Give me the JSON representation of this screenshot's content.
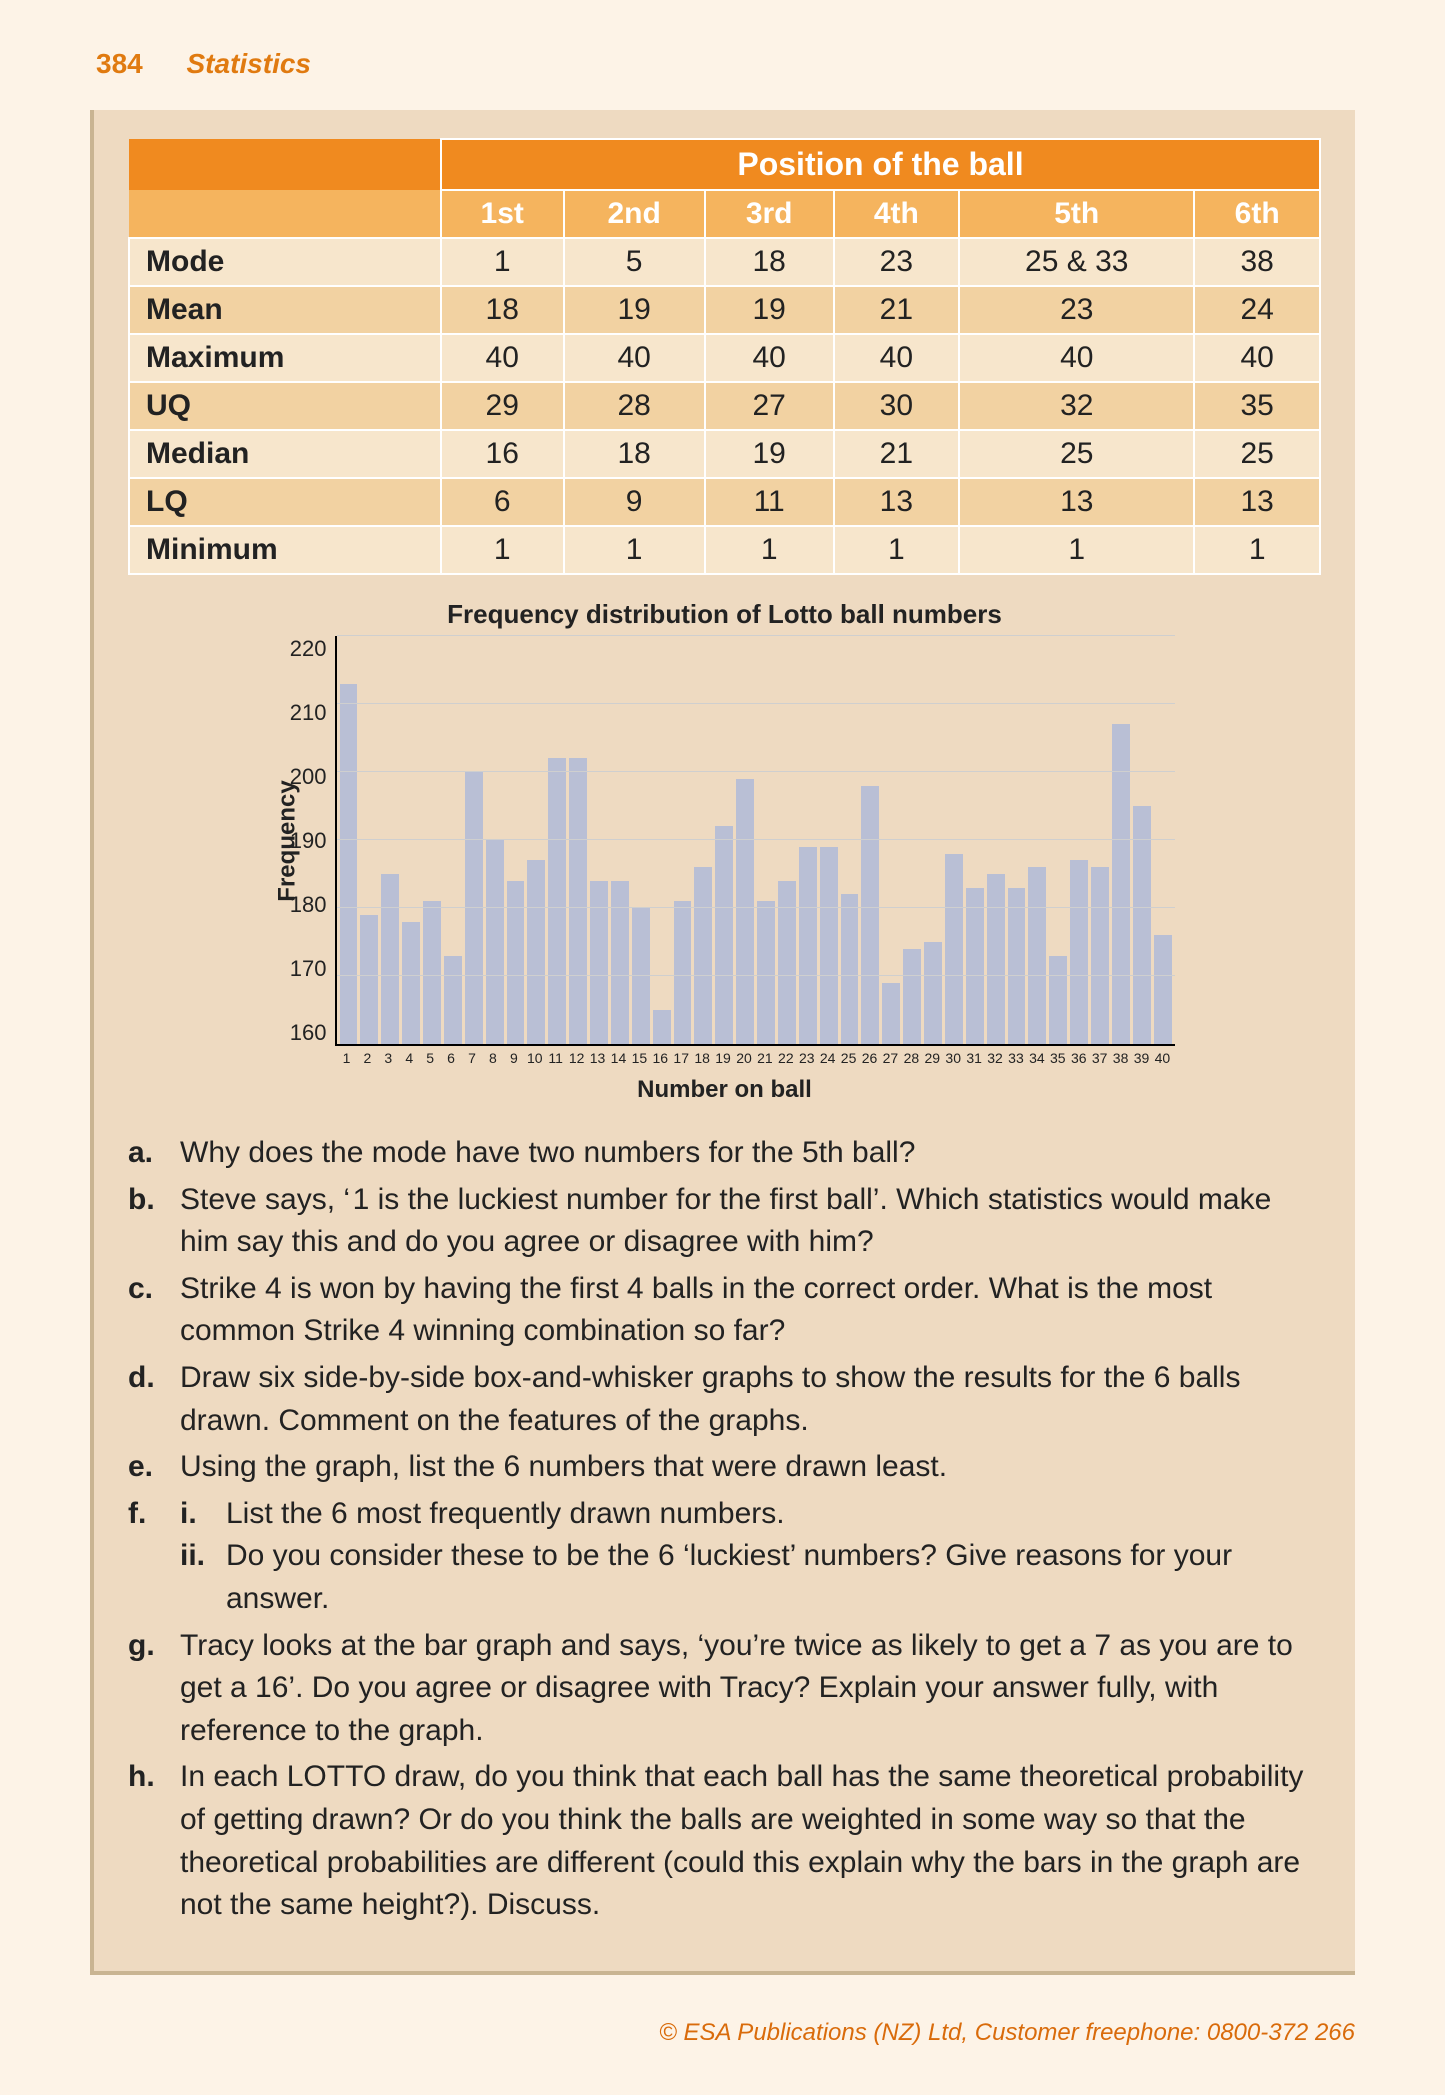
{
  "header": {
    "page_number": "384",
    "section_title": "Statistics"
  },
  "table": {
    "super_header": "Position of the ball",
    "columns": [
      "1st",
      "2nd",
      "3rd",
      "4th",
      "5th",
      "6th"
    ],
    "rows": [
      {
        "label": "Mode",
        "cells": [
          "1",
          "5",
          "18",
          "23",
          "25 & 33",
          "38"
        ]
      },
      {
        "label": "Mean",
        "cells": [
          "18",
          "19",
          "19",
          "21",
          "23",
          "24"
        ]
      },
      {
        "label": "Maximum",
        "cells": [
          "40",
          "40",
          "40",
          "40",
          "40",
          "40"
        ]
      },
      {
        "label": "UQ",
        "cells": [
          "29",
          "28",
          "27",
          "30",
          "32",
          "35"
        ]
      },
      {
        "label": "Median",
        "cells": [
          "16",
          "18",
          "19",
          "21",
          "25",
          "25"
        ]
      },
      {
        "label": "LQ",
        "cells": [
          "6",
          "9",
          "11",
          "13",
          "13",
          "13"
        ]
      },
      {
        "label": "Minimum",
        "cells": [
          "1",
          "1",
          "1",
          "1",
          "1",
          "1"
        ]
      }
    ]
  },
  "chart": {
    "type": "bar",
    "title": "Frequency distribution of Lotto ball numbers",
    "ylabel": "Frequency",
    "xlabel": "Number on ball",
    "ylim": [
      160,
      220
    ],
    "ytick_step": 10,
    "yticks": [
      "220",
      "210",
      "200",
      "190",
      "180",
      "170",
      "160"
    ],
    "bar_color": "#b9bfd5",
    "grid_color": "#cfcfcf",
    "background_color": "#eedac1",
    "categories": [
      "1",
      "2",
      "3",
      "4",
      "5",
      "6",
      "7",
      "8",
      "9",
      "10",
      "11",
      "12",
      "13",
      "14",
      "15",
      "16",
      "17",
      "18",
      "19",
      "20",
      "21",
      "22",
      "23",
      "24",
      "25",
      "26",
      "27",
      "28",
      "29",
      "30",
      "31",
      "32",
      "33",
      "34",
      "35",
      "36",
      "37",
      "38",
      "39",
      "40"
    ],
    "values": [
      213,
      179,
      185,
      178,
      181,
      173,
      200,
      190,
      184,
      187,
      202,
      202,
      184,
      184,
      180,
      165,
      181,
      186,
      192,
      199,
      181,
      184,
      189,
      189,
      182,
      198,
      169,
      174,
      175,
      188,
      183,
      185,
      183,
      186,
      173,
      187,
      186,
      207,
      195,
      176
    ]
  },
  "questions": [
    {
      "label": "a.",
      "text": "Why does the mode have two numbers for the 5th ball?"
    },
    {
      "label": "b.",
      "text": "Steve says, ‘ 1 is the luckiest number for the first ball’. Which statistics would make him say this and do you agree or disagree with him?"
    },
    {
      "label": "c.",
      "text": "Strike 4 is won by having the first 4 balls in the correct order. What is the most common Strike 4 winning combination so far?"
    },
    {
      "label": "d.",
      "text": "Draw six side-by-side box-and-whisker graphs to show the results for the 6 balls drawn. Comment on the features of the graphs."
    },
    {
      "label": "e.",
      "text": "Using the graph, list the 6 numbers that were drawn least."
    },
    {
      "label": "f.",
      "subs": [
        {
          "label": "i.",
          "text": "List the 6 most frequently drawn numbers."
        },
        {
          "label": "ii.",
          "text": "Do you consider these to be the 6 ‘luckiest’ numbers? Give reasons for your answer."
        }
      ]
    },
    {
      "label": "g.",
      "text": "Tracy looks at the bar graph and says, ‘you’re twice as likely to get a 7 as you are to get a 16’. Do you agree or disagree with Tracy? Explain your answer fully, with reference to the graph."
    },
    {
      "label": "h.",
      "text": "In each LOTTO draw, do you think that each ball has the same theoretical probability of getting drawn? Or do you think the balls are weighted in some way so that the theoretical probabilities are different (could this explain why the bars in the graph are not the same height?). Discuss."
    }
  ],
  "footer": "© ESA Publications (NZ) Ltd, Customer freephone: 0800-372 266"
}
